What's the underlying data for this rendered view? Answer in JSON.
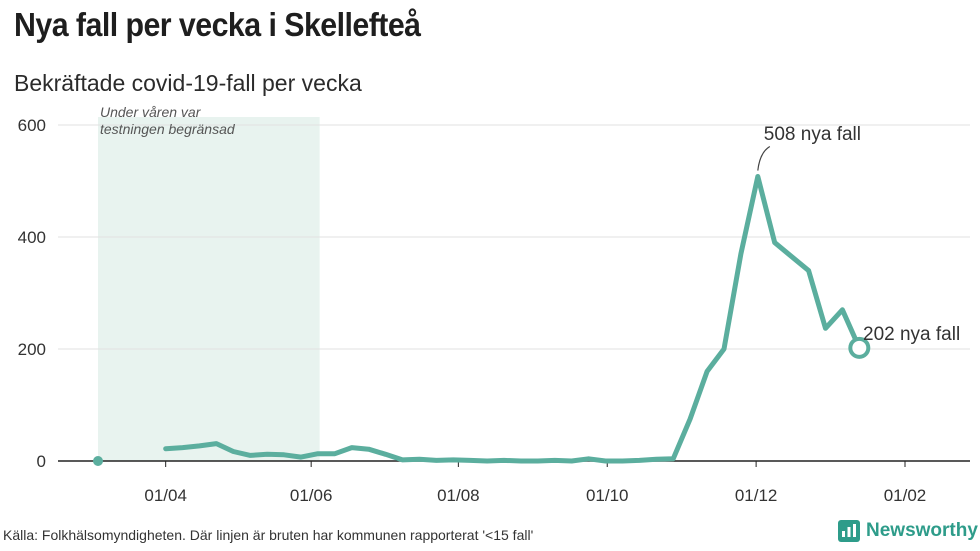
{
  "header": {
    "title": "Nya fall per vecka i Skellefteå",
    "subtitle": "Bekräftade covid-19-fall per vecka"
  },
  "footer": {
    "source": "Källa: Folkhälsomyndigheten. Där linjen är bruten har kommunen rapporterat '<15 fall'",
    "brand": "Newsworthy"
  },
  "colors": {
    "line": "#5bae9e",
    "band": "#e8f3ef",
    "grid": "#e2e2e2",
    "axis": "#222222",
    "text": "#333333",
    "brand": "#2e9c8a"
  },
  "chart_data": {
    "type": "line",
    "title": "Nya fall per vecka i Skellefteå",
    "subtitle": "Bekräftade covid-19-fall per vecka",
    "xlabel": "",
    "ylabel": "",
    "y_ticks": [
      0,
      200,
      400,
      600
    ],
    "ylim": [
      0,
      620
    ],
    "x_ticks": [
      {
        "label": "01/04",
        "week": 14
      },
      {
        "label": "01/06",
        "week": 22.6
      },
      {
        "label": "01/08",
        "week": 31.3
      },
      {
        "label": "01/10",
        "week": 40.1
      },
      {
        "label": "01/12",
        "week": 48.9
      },
      {
        "label": "01/02",
        "week": 57.7
      }
    ],
    "xlim": [
      6,
      62
    ],
    "grid": true,
    "band": {
      "from_week": 10,
      "to_week": 23.1,
      "label_line1": "Under våren var",
      "label_line2": "testningen begränsad"
    },
    "series": [
      {
        "name": "start",
        "points": [
          {
            "week": 10,
            "value": 0
          }
        ]
      },
      {
        "name": "cases",
        "points": [
          {
            "week": 14,
            "value": 22
          },
          {
            "week": 15,
            "value": 24
          },
          {
            "week": 16,
            "value": 27
          },
          {
            "week": 17,
            "value": 31
          },
          {
            "week": 18,
            "value": 17
          },
          {
            "week": 19,
            "value": 10
          },
          {
            "week": 20,
            "value": 12
          },
          {
            "week": 21,
            "value": 11
          },
          {
            "week": 22,
            "value": 7
          },
          {
            "week": 23,
            "value": 13
          },
          {
            "week": 24,
            "value": 13
          },
          {
            "week": 25,
            "value": 24
          },
          {
            "week": 26,
            "value": 21
          },
          {
            "week": 27,
            "value": 12
          },
          {
            "week": 28,
            "value": 2
          },
          {
            "week": 29,
            "value": 3
          },
          {
            "week": 30,
            "value": 1
          },
          {
            "week": 31,
            "value": 2
          },
          {
            "week": 32,
            "value": 1
          },
          {
            "week": 33,
            "value": 0
          },
          {
            "week": 34,
            "value": 1
          },
          {
            "week": 35,
            "value": 0
          },
          {
            "week": 36,
            "value": 0
          },
          {
            "week": 37,
            "value": 1
          },
          {
            "week": 38,
            "value": 0
          },
          {
            "week": 39,
            "value": 4
          },
          {
            "week": 40,
            "value": 0
          },
          {
            "week": 41,
            "value": 0
          },
          {
            "week": 42,
            "value": 1
          },
          {
            "week": 43,
            "value": 3
          },
          {
            "week": 44,
            "value": 4
          },
          {
            "week": 45,
            "value": 75
          },
          {
            "week": 46,
            "value": 160
          },
          {
            "week": 47,
            "value": 200
          },
          {
            "week": 48,
            "value": 370
          },
          {
            "week": 49,
            "value": 508
          },
          {
            "week": 50,
            "value": 390
          },
          {
            "week": 51,
            "value": 365
          },
          {
            "week": 52,
            "value": 340
          },
          {
            "week": 53,
            "value": 237
          },
          {
            "week": 54,
            "value": 270
          },
          {
            "week": 55,
            "value": 202
          }
        ]
      }
    ],
    "annotations": [
      {
        "text": "508 nya fall",
        "week": 49,
        "value": 508
      },
      {
        "text": "202 nya fall",
        "week": 55,
        "value": 202
      }
    ]
  }
}
